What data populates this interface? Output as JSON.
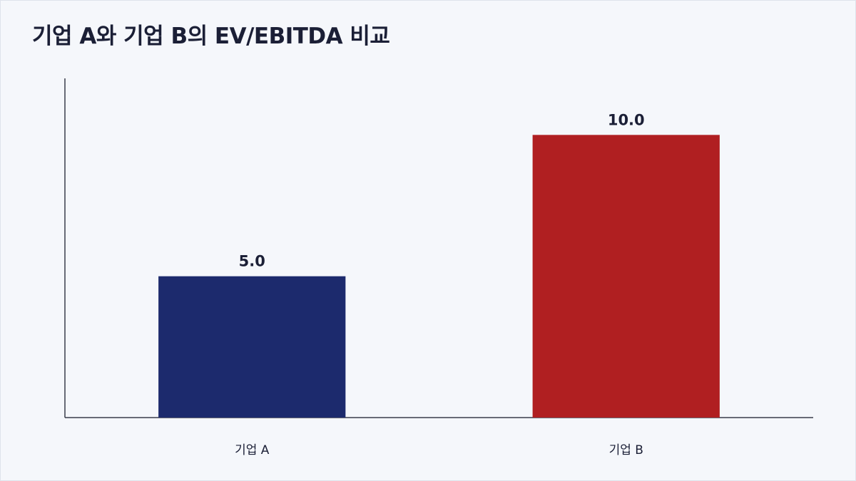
{
  "chart_data": {
    "type": "bar",
    "title": "기업 A와 기업 B의 EV/EBITDA 비교",
    "xlabel": "",
    "ylabel": "",
    "categories": [
      "기업 A",
      "기업 B"
    ],
    "values": [
      5.0,
      10.0
    ],
    "value_labels": [
      "5.0",
      "10.0"
    ],
    "ylim": [
      0,
      12
    ],
    "grid": false,
    "legend": "none",
    "colors": [
      "#1c2a6d",
      "#b01f21"
    ]
  },
  "colors": {
    "background": "#f5f7fb",
    "axis": "#3a3d4a",
    "text": "#1b1f36"
  }
}
